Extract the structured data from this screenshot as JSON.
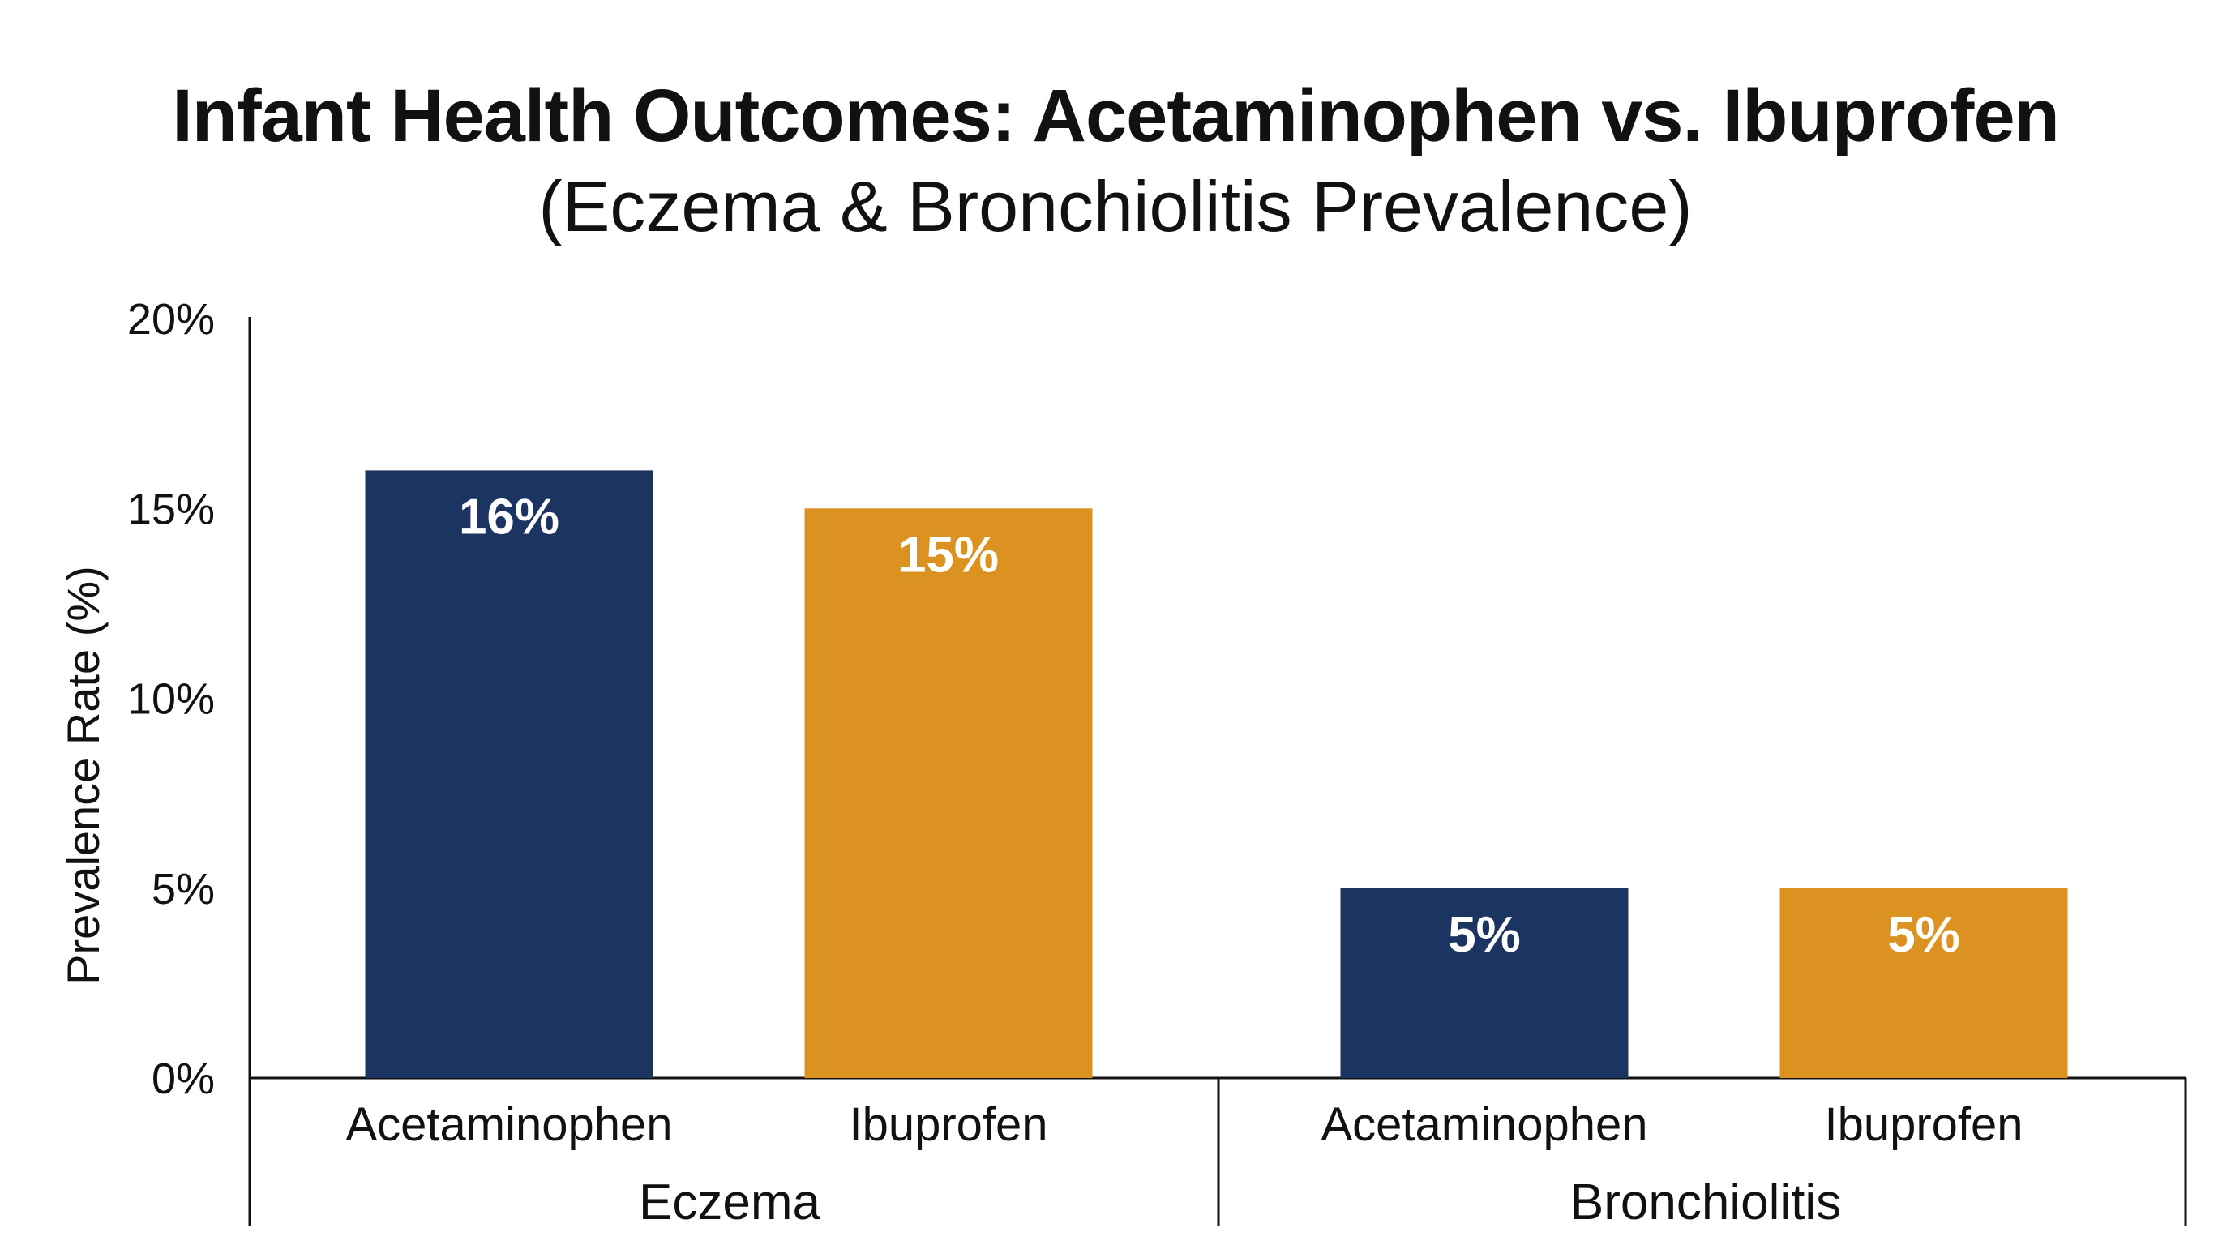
{
  "chart_data": {
    "type": "bar",
    "title": "Infant Health Outcomes: Acetaminophen vs. Ibuprofen",
    "subtitle": "(Eczema & Bronchiolitis Prevalence)",
    "ylabel": "Prevalence Rate (%)",
    "xlabel": "",
    "ylim": [
      0,
      20
    ],
    "yticks": [
      {
        "value": 0,
        "label": "0%"
      },
      {
        "value": 5,
        "label": "5%"
      },
      {
        "value": 10,
        "label": "10%"
      },
      {
        "value": 15,
        "label": "15%"
      },
      {
        "value": 20,
        "label": "20%"
      }
    ],
    "grid": false,
    "legend": "none",
    "groups": [
      {
        "name": "Eczema",
        "bars": [
          {
            "category": "Acetaminophen",
            "value": 16,
            "label": "16%",
            "color": "#1c3461"
          },
          {
            "category": "Ibuprofen",
            "value": 15,
            "label": "15%",
            "color": "#dc9220"
          }
        ]
      },
      {
        "name": "Bronchiolitis",
        "bars": [
          {
            "category": "Acetaminophen",
            "value": 5,
            "label": "5%",
            "color": "#1c3461"
          },
          {
            "category": "Ibuprofen",
            "value": 5,
            "label": "5%",
            "color": "#dc9220"
          }
        ]
      }
    ]
  }
}
